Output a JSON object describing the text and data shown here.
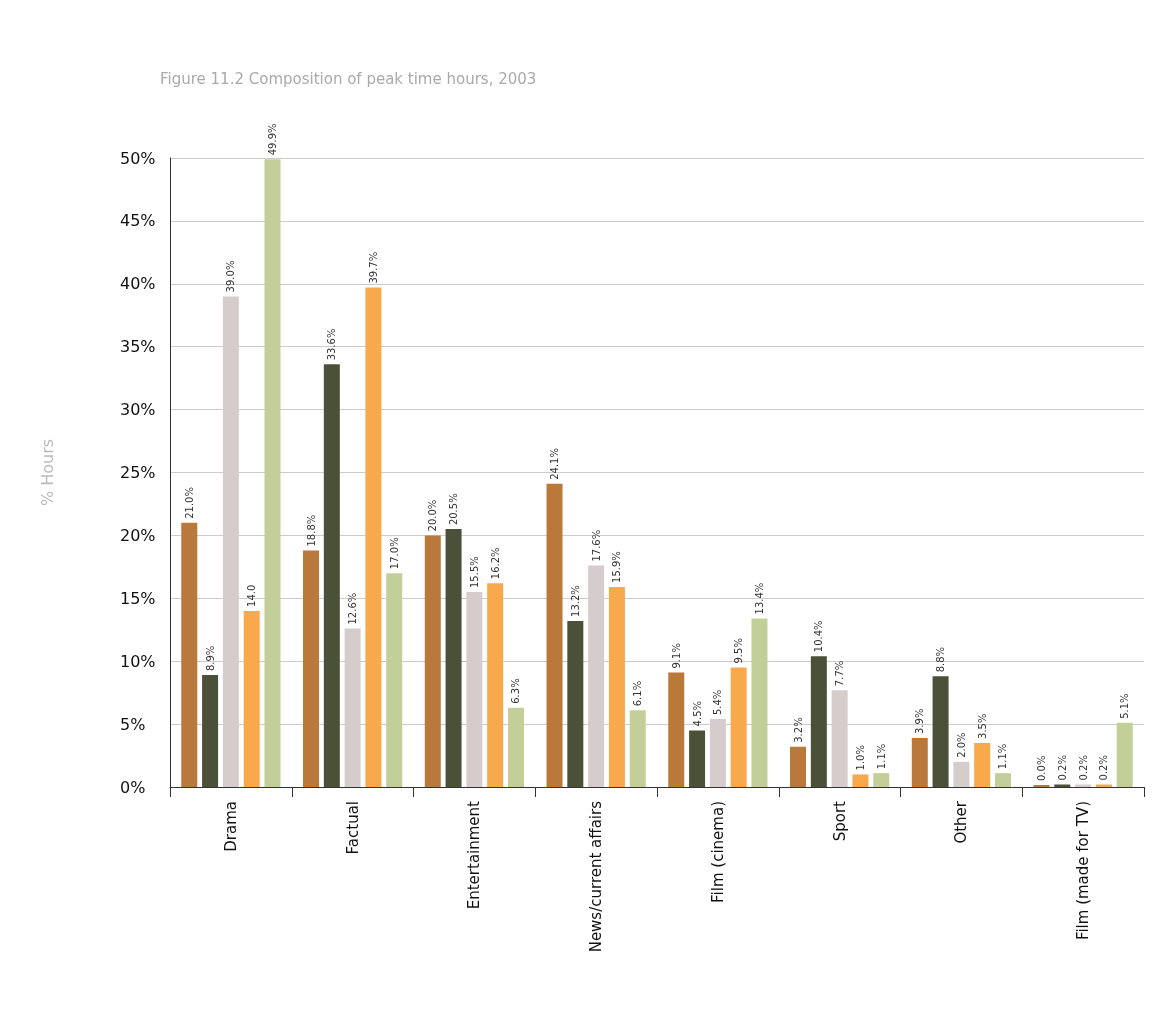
{
  "chart_data": {
    "type": "bar",
    "title": "Figure 11.2 Composition of peak time hours, 2003",
    "ylabel": "% Hours",
    "categories": [
      "Drama",
      "Factual",
      "Entertainment",
      "News/current affairs",
      "Film (cinema)",
      "Sport",
      "Other",
      "Film (made for TV)"
    ],
    "series": [
      {
        "color": "#b8793a",
        "values": [
          21.0,
          18.8,
          20.0,
          24.1,
          9.1,
          3.2,
          3.9,
          0.0
        ],
        "value_labels": [
          "21.0%",
          "18.8%",
          "20.0%",
          "24.1%",
          "9.1%",
          "3.2%",
          "3.9%",
          "0.0%"
        ]
      },
      {
        "color": "#4b5038",
        "values": [
          8.9,
          33.6,
          20.5,
          13.2,
          4.5,
          10.4,
          8.8,
          0.2
        ],
        "value_labels": [
          "8.9%",
          "33.6%",
          "20.5%",
          "13.2%",
          "4.5%",
          "10.4%",
          "8.8%",
          "0.2%"
        ]
      },
      {
        "color": "#d6cccc",
        "values": [
          39.0,
          12.6,
          15.5,
          17.6,
          5.4,
          7.7,
          2.0,
          0.2
        ],
        "value_labels": [
          "39.0%",
          "12.6%",
          "15.5%",
          "17.6%",
          "5.4%",
          "7.7%",
          "2.0%",
          "0.2%"
        ]
      },
      {
        "color": "#f7a94c",
        "values": [
          14.0,
          39.7,
          16.2,
          15.9,
          9.5,
          1.0,
          3.5,
          0.2
        ],
        "value_labels": [
          "14.0",
          "39.7%",
          "16.2%",
          "15.9%",
          "9.5%",
          "1.0%",
          "3.5%",
          "0.2%"
        ]
      },
      {
        "color": "#c3cf98",
        "values": [
          49.9,
          17.0,
          6.3,
          6.1,
          13.4,
          1.1,
          1.1,
          5.1
        ],
        "value_labels": [
          "49.9%",
          "17.0%",
          "6.3%",
          "6.1%",
          "13.4%",
          "1.1%",
          "1.1%",
          "5.1%"
        ]
      }
    ],
    "ylim": [
      0,
      50
    ],
    "yticks": [
      {
        "value": 0,
        "label": "0%"
      },
      {
        "value": 5,
        "label": "5%"
      },
      {
        "value": 10,
        "label": "10%"
      },
      {
        "value": 15,
        "label": "15%"
      },
      {
        "value": 20,
        "label": "20%"
      },
      {
        "value": 25,
        "label": "25%"
      },
      {
        "value": 30,
        "label": "30%"
      },
      {
        "value": 35,
        "label": "35%"
      },
      {
        "value": 40,
        "label": "40%"
      },
      {
        "value": 45,
        "label": "45%"
      },
      {
        "value": 50,
        "label": "50%"
      }
    ],
    "grid": "y"
  }
}
